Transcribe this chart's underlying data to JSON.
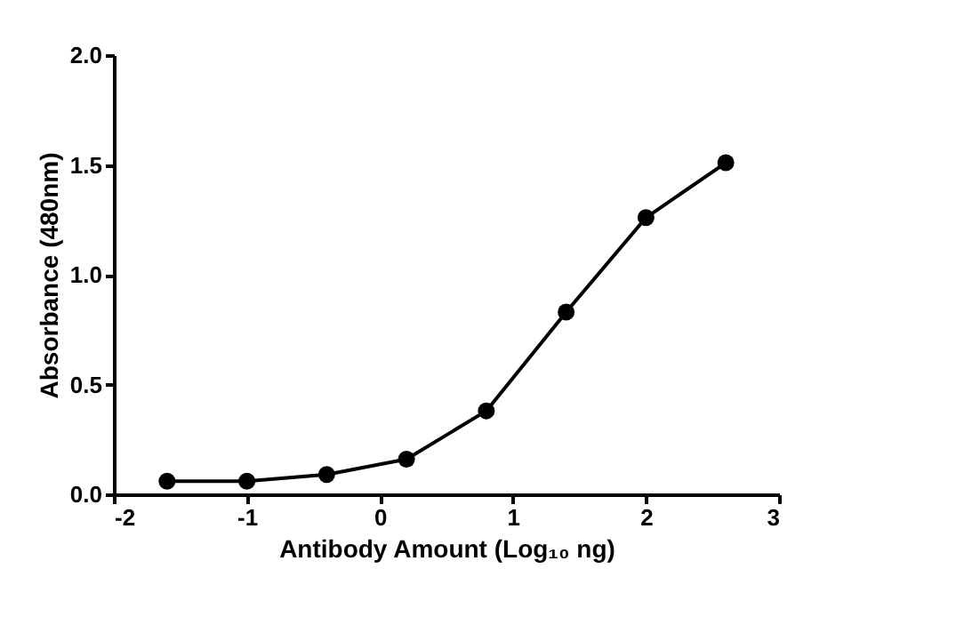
{
  "chart_data": {
    "type": "line",
    "xlabel": "Antibody Amount (Log₁₀ ng)",
    "ylabel": "Absorbance (480nm)",
    "x": [
      -1.6,
      -1.0,
      -0.4,
      0.2,
      0.8,
      1.4,
      2.0,
      2.6
    ],
    "series": [
      {
        "color": "#000000",
        "values": [
          0.06,
          0.06,
          0.09,
          0.16,
          0.38,
          0.83,
          1.26,
          1.51
        ]
      }
    ],
    "xlim": [
      -2,
      3
    ],
    "xticks": [
      -2,
      -1,
      0,
      1,
      2,
      3
    ],
    "ylim": [
      0,
      2
    ],
    "yticks": [
      {
        "value": 0,
        "label": "0.0"
      },
      {
        "value": 0.5,
        "label": "0.5"
      },
      {
        "value": 1,
        "label": "1.0"
      },
      {
        "value": 1.5,
        "label": "1.5"
      },
      {
        "value": 2,
        "label": "2.0"
      }
    ],
    "grid": false,
    "marker": "circle",
    "line_style": "solid"
  }
}
